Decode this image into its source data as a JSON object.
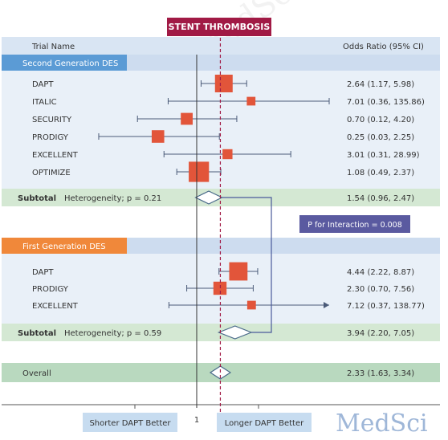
{
  "title": "STENT THROMBOSIS",
  "watermark": "MedSci",
  "chart_data": {
    "type": "forest",
    "title": "STENT THROMBOSIS",
    "columns": {
      "left": "Trial Name",
      "right": "Odds Ratio (95% CI)"
    },
    "x_scale": "log",
    "null_value": 1,
    "pooled_line": 2.33,
    "x_labels": {
      "left": "Shorter DAPT Better",
      "right": "Longer DAPT Better",
      "center": "1"
    },
    "interaction_label": "P for Interaction = 0.008",
    "groups": [
      {
        "name": "Second Generation DES",
        "header_color": "#5b9bd5",
        "studies": [
          {
            "name": "DAPT",
            "or": 2.64,
            "lo": 1.17,
            "hi": 5.98,
            "label": "2.64 (1.17, 5.98)",
            "weight": 1.0
          },
          {
            "name": "ITALIC",
            "or": 7.01,
            "lo": 0.36,
            "hi": 135.86,
            "label": "7.01 (0.36, 135.86)",
            "weight": 0.3
          },
          {
            "name": "SECURITY",
            "or": 0.7,
            "lo": 0.12,
            "hi": 4.2,
            "label": "0.70 (0.12, 4.20)",
            "weight": 0.55
          },
          {
            "name": "PRODIGY",
            "or": 0.25,
            "lo": 0.03,
            "hi": 2.25,
            "label": "0.25 (0.03, 2.25)",
            "weight": 0.6
          },
          {
            "name": "EXCELLENT",
            "or": 3.01,
            "lo": 0.31,
            "hi": 28.99,
            "label": "3.01 (0.31, 28.99)",
            "weight": 0.4
          },
          {
            "name": "OPTIMIZE",
            "or": 1.08,
            "lo": 0.49,
            "hi": 2.37,
            "label": "1.08 (0.49, 2.37)",
            "weight": 1.2
          }
        ],
        "subtotal": {
          "label": "Subtotal",
          "heterogeneity": "Heterogeneity; p = 0.21",
          "or": 1.54,
          "lo": 0.96,
          "hi": 2.47,
          "text": "1.54 (0.96, 2.47)"
        }
      },
      {
        "name": "First Generation DES",
        "header_color": "#f0883a",
        "studies": [
          {
            "name": "DAPT",
            "or": 4.44,
            "lo": 2.22,
            "hi": 8.87,
            "label": "4.44 (2.22, 8.87)",
            "weight": 1.05
          },
          {
            "name": "PRODIGY",
            "or": 2.3,
            "lo": 0.7,
            "hi": 7.56,
            "label": "2.30 (0.70, 7.56)",
            "weight": 0.65
          },
          {
            "name": "EXCELLENT",
            "or": 7.12,
            "lo": 0.37,
            "hi": 138.77,
            "label": "7.12 (0.37, 138.77)",
            "weight": 0.3,
            "arrow": true
          }
        ],
        "subtotal": {
          "label": "Subtotal",
          "heterogeneity": "Heterogeneity; p = 0.59",
          "or": 3.94,
          "lo": 2.2,
          "hi": 7.05,
          "text": "3.94 (2.20, 7.05)"
        }
      }
    ],
    "overall": {
      "label": "Overall",
      "or": 2.33,
      "lo": 1.63,
      "hi": 3.34,
      "text": "2.33 (1.63, 3.34)"
    }
  }
}
